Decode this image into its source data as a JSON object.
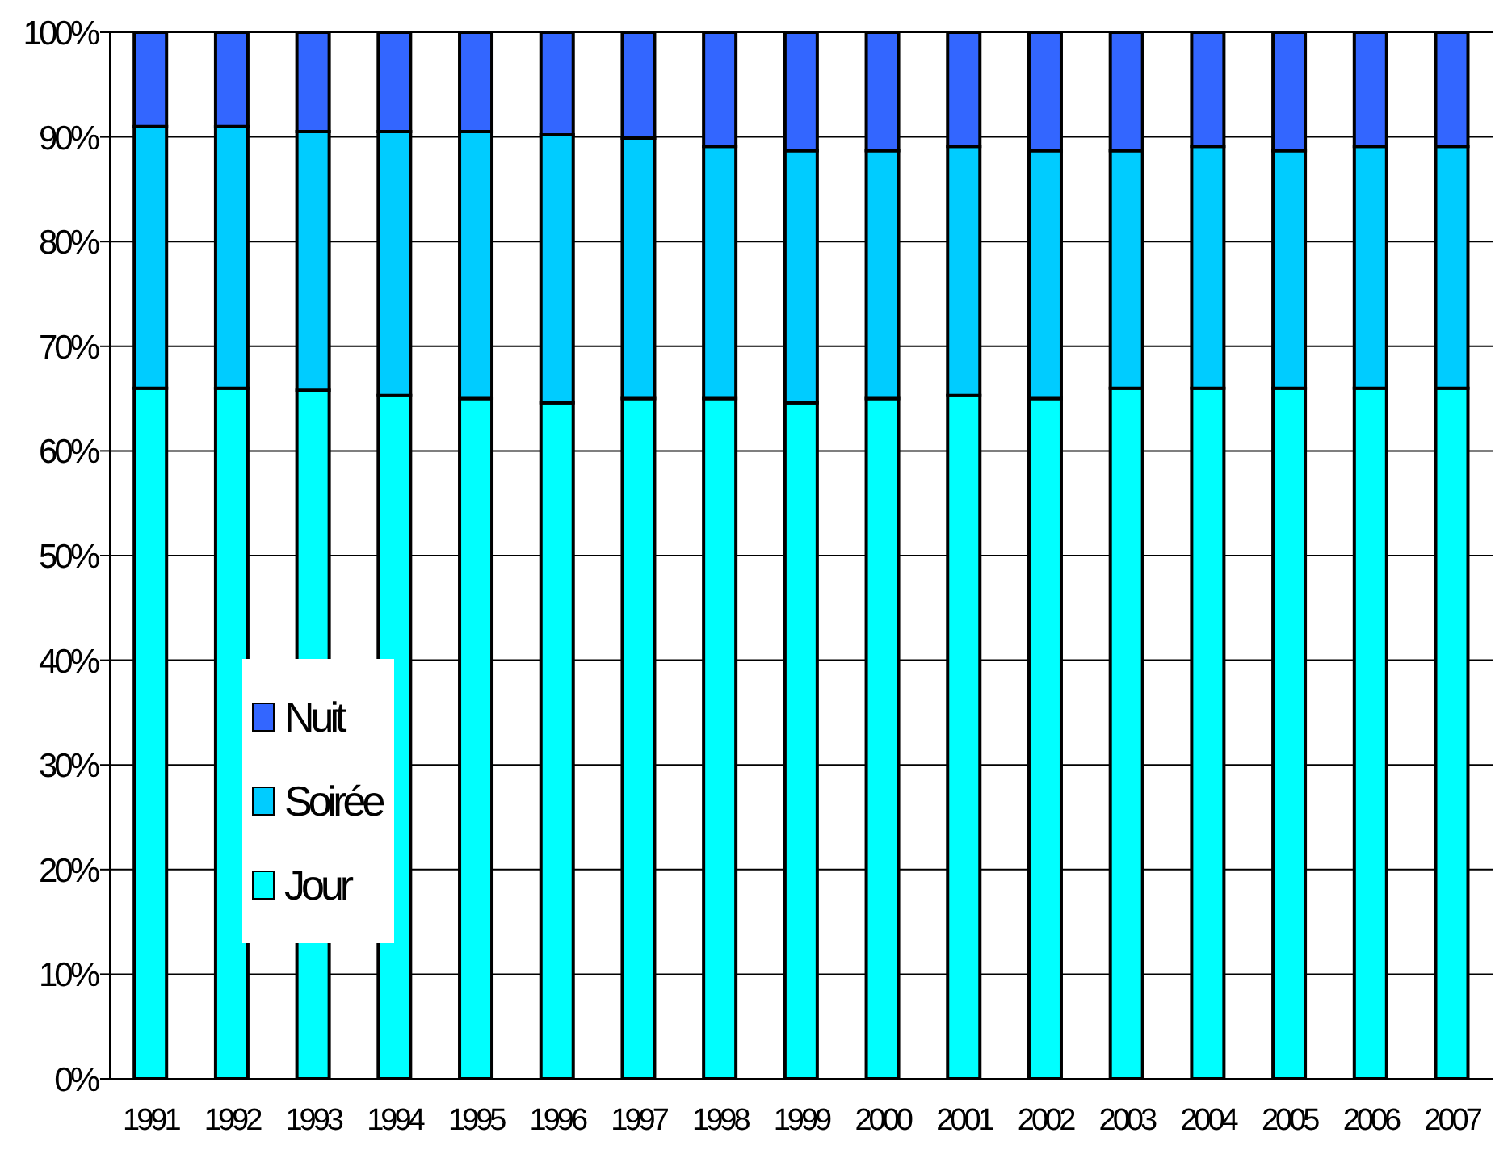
{
  "chart_data": {
    "type": "bar",
    "stacked": true,
    "categories": [
      "1991",
      "1992",
      "1993",
      "1994",
      "1995",
      "1996",
      "1997",
      "1998",
      "1999",
      "2000",
      "2001",
      "2002",
      "2003",
      "2004",
      "2005",
      "2006",
      "2007"
    ],
    "series": [
      {
        "name": "Jour",
        "color": "#00ffff",
        "values": [
          66,
          66,
          65.8,
          65.3,
          65,
          64.6,
          65,
          65,
          64.6,
          65,
          65.3,
          65,
          66,
          66,
          66,
          66,
          66
        ]
      },
      {
        "name": "Soirée",
        "color": "#00ccff",
        "values": [
          25,
          25,
          24.7,
          25.2,
          25.5,
          25.6,
          24.9,
          24.1,
          24.1,
          23.7,
          23.8,
          23.7,
          22.7,
          23.1,
          22.7,
          23.1,
          23.1
        ]
      },
      {
        "name": "Nuit",
        "color": "#3366ff",
        "values": [
          9,
          9,
          9.5,
          9.5,
          9.5,
          9.8,
          10.1,
          10.9,
          11.3,
          11.3,
          10.9,
          11.3,
          11.3,
          10.9,
          11.3,
          10.9,
          10.9
        ]
      }
    ],
    "ylim": [
      0,
      100
    ],
    "yticks": [
      {
        "value": 0,
        "label": "0%"
      },
      {
        "value": 10,
        "label": "10%"
      },
      {
        "value": 20,
        "label": "20%"
      },
      {
        "value": 30,
        "label": "30%"
      },
      {
        "value": 40,
        "label": "40%"
      },
      {
        "value": 50,
        "label": "50%"
      },
      {
        "value": 60,
        "label": "60%"
      },
      {
        "value": 70,
        "label": "70%"
      },
      {
        "value": 80,
        "label": "80%"
      },
      {
        "value": 90,
        "label": "90%"
      },
      {
        "value": 100,
        "label": "100%"
      }
    ],
    "grid": "y",
    "legend": "center left"
  }
}
